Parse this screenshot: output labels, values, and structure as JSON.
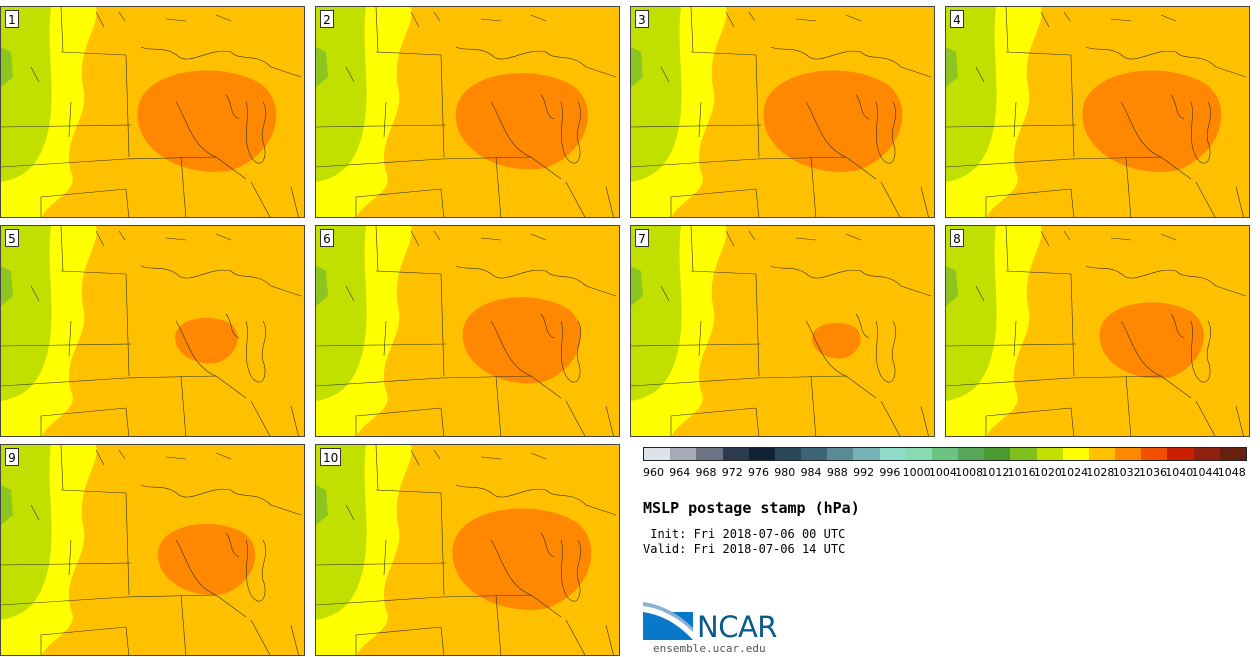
{
  "panels": [
    {
      "label": "1",
      "high_scale": 1.0,
      "high_shift": 0
    },
    {
      "label": "2",
      "high_scale": 0.95,
      "high_shift": 0
    },
    {
      "label": "3",
      "high_scale": 1.0,
      "high_shift": -4
    },
    {
      "label": "4",
      "high_scale": 1.0,
      "high_shift": 0
    },
    {
      "label": "5",
      "high_scale": 0.45,
      "high_shift": 0
    },
    {
      "label": "6",
      "high_scale": 0.85,
      "high_shift": 0
    },
    {
      "label": "7",
      "high_scale": 0.35,
      "high_shift": 0
    },
    {
      "label": "8",
      "high_scale": 0.75,
      "high_shift": 0
    },
    {
      "label": "9",
      "high_scale": 0.7,
      "high_shift": 0
    },
    {
      "label": "10",
      "high_scale": 1.0,
      "high_shift": 0
    }
  ],
  "colorbar": {
    "colors": [
      "#dde3ea",
      "#a6aab6",
      "#6c7384",
      "#2b3a4c",
      "#112233",
      "#29485a",
      "#3d6575",
      "#5a8a96",
      "#77b2b5",
      "#90dcc8",
      "#88dab0",
      "#6cc483",
      "#55a858",
      "#4a9a32",
      "#7fbf1e",
      "#c2e000",
      "#ffff00",
      "#ffc000",
      "#ff8800",
      "#f05000",
      "#c82000",
      "#902010",
      "#682010"
    ],
    "ticks": [
      "960",
      "964",
      "968",
      "972",
      "976",
      "980",
      "984",
      "988",
      "992",
      "996",
      "1000",
      "1004",
      "1008",
      "1012",
      "1016",
      "1020",
      "1024",
      "1028",
      "1032",
      "1036",
      "1040",
      "1044",
      "1048"
    ]
  },
  "title": "MSLP postage stamp (hPa)",
  "init": " Init: Fri 2018-07-06 00 UTC",
  "valid": "Valid: Fri 2018-07-06 14 UTC",
  "logo": {
    "name": "NCAR",
    "url": "ensemble.ucar.edu"
  }
}
